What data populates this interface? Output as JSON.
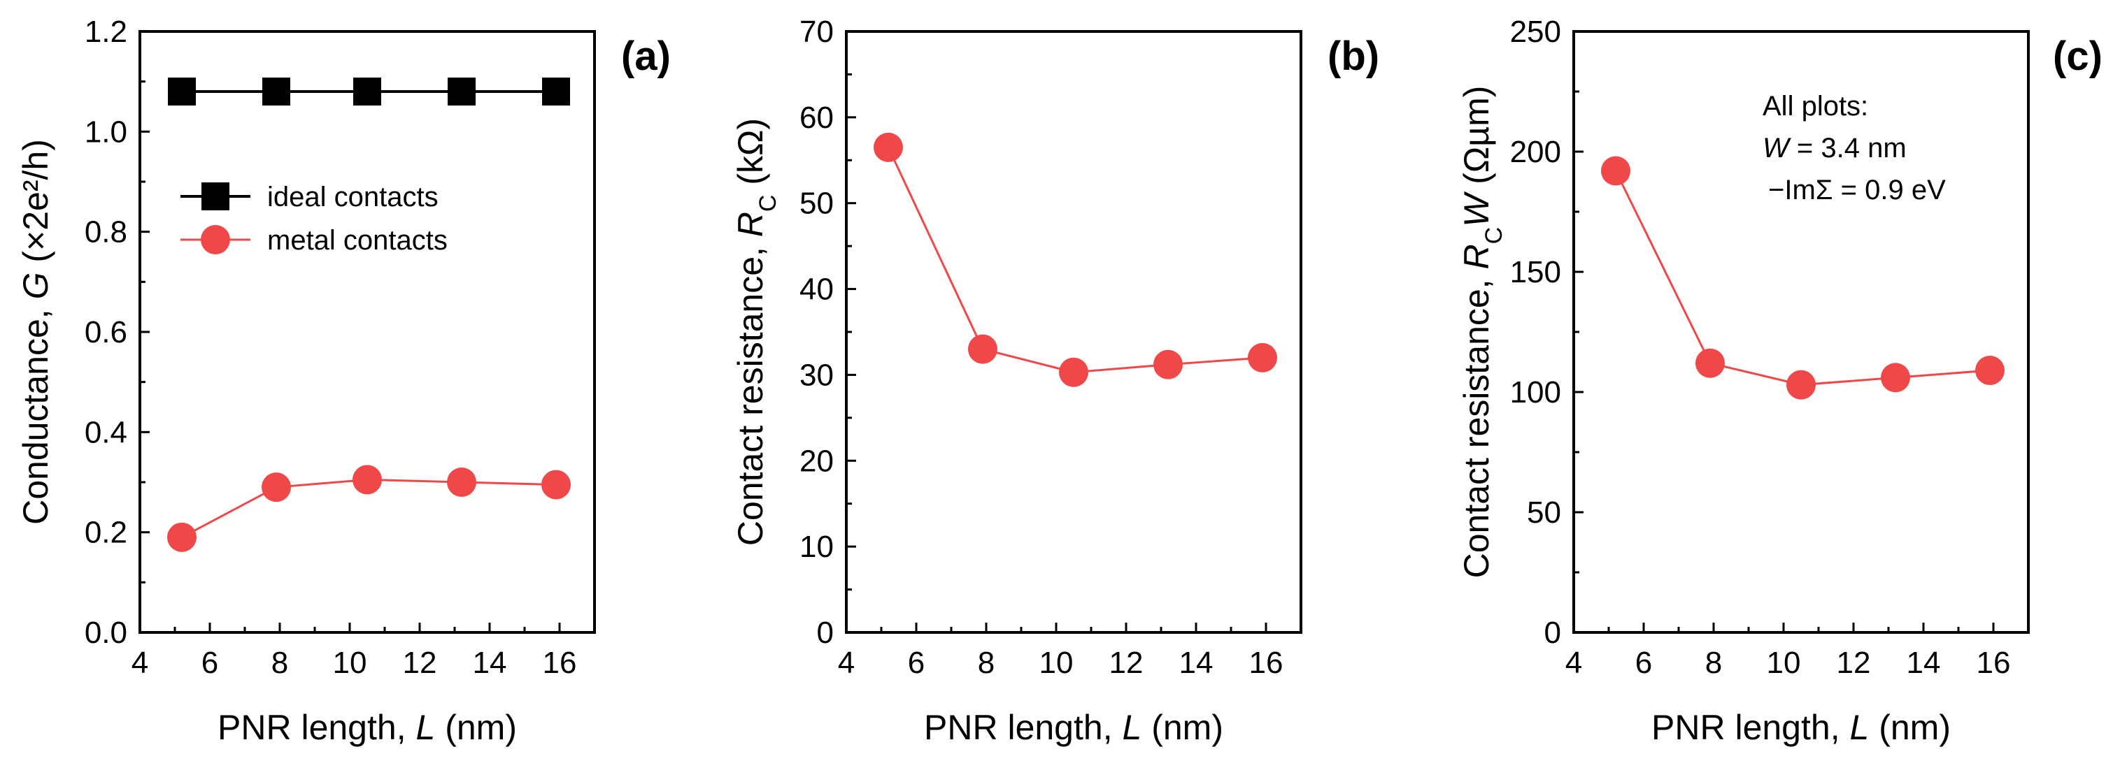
{
  "chart_data": [
    {
      "type": "line",
      "panel_label": "(a)",
      "xlabel": "PNR length,",
      "xlabel_var": "L",
      "xlabel_unit": "(nm)",
      "ylabel": "Conductance,",
      "ylabel_var": "G",
      "ylabel_unit": "(×2e²/h)",
      "xlim": [
        4,
        17
      ],
      "ylim": [
        0,
        1.2
      ],
      "xticks": [
        4,
        6,
        8,
        10,
        12,
        14,
        16
      ],
      "yticks": [
        0.0,
        0.2,
        0.4,
        0.6,
        0.8,
        1.0,
        1.2
      ],
      "ytick_labels": [
        "0.0",
        "0.2",
        "0.4",
        "0.6",
        "0.8",
        "1.0",
        "1.2"
      ],
      "legend_position": "upper-left",
      "series": [
        {
          "name": "ideal contacts",
          "marker": "square",
          "color": "#000000",
          "x": [
            5.2,
            7.9,
            10.5,
            13.2,
            15.9
          ],
          "y": [
            1.08,
            1.08,
            1.08,
            1.08,
            1.08
          ]
        },
        {
          "name": "metal contacts",
          "marker": "circle",
          "color": "#f04848",
          "x": [
            5.2,
            7.9,
            10.5,
            13.2,
            15.9
          ],
          "y": [
            0.19,
            0.29,
            0.305,
            0.3,
            0.295
          ]
        }
      ]
    },
    {
      "type": "line",
      "panel_label": "(b)",
      "xlabel": "PNR length,",
      "xlabel_var": "L",
      "xlabel_unit": "(nm)",
      "ylabel": "Contact resistance,",
      "ylabel_var": "R",
      "ylabel_sub": "C",
      "ylabel_unit": "(kΩ)",
      "xlim": [
        4,
        17
      ],
      "ylim": [
        0,
        70
      ],
      "xticks": [
        4,
        6,
        8,
        10,
        12,
        14,
        16
      ],
      "yticks": [
        0,
        10,
        20,
        30,
        40,
        50,
        60,
        70
      ],
      "ytick_labels": [
        "0",
        "10",
        "20",
        "30",
        "40",
        "50",
        "60",
        "70"
      ],
      "series": [
        {
          "name": "R_C",
          "marker": "circle",
          "color": "#f04848",
          "x": [
            5.2,
            7.9,
            10.5,
            13.2,
            15.9
          ],
          "y": [
            56.5,
            33,
            30.3,
            31.2,
            32
          ]
        }
      ]
    },
    {
      "type": "line",
      "panel_label": "(c)",
      "xlabel": "PNR length,",
      "xlabel_var": "L",
      "xlabel_unit": "(nm)",
      "ylabel": "Contact resistance,",
      "ylabel_var": "R",
      "ylabel_sub": "C",
      "ylabel_var2": "W",
      "ylabel_unit": "(Ωµm)",
      "xlim": [
        4,
        17
      ],
      "ylim": [
        0,
        250
      ],
      "xticks": [
        4,
        6,
        8,
        10,
        12,
        14,
        16
      ],
      "yticks": [
        0,
        50,
        100,
        150,
        200,
        250
      ],
      "ytick_labels": [
        "0",
        "50",
        "100",
        "150",
        "200",
        "250"
      ],
      "annotation": {
        "line1": "All plots:",
        "line2_var": "W",
        "line2_rest": " = 3.4 nm",
        "line3": "−ImΣ = 0.9 eV"
      },
      "series": [
        {
          "name": "R_C W",
          "marker": "circle",
          "color": "#f04848",
          "x": [
            5.2,
            7.9,
            10.5,
            13.2,
            15.9
          ],
          "y": [
            192,
            112,
            103,
            106,
            109
          ]
        }
      ]
    }
  ]
}
